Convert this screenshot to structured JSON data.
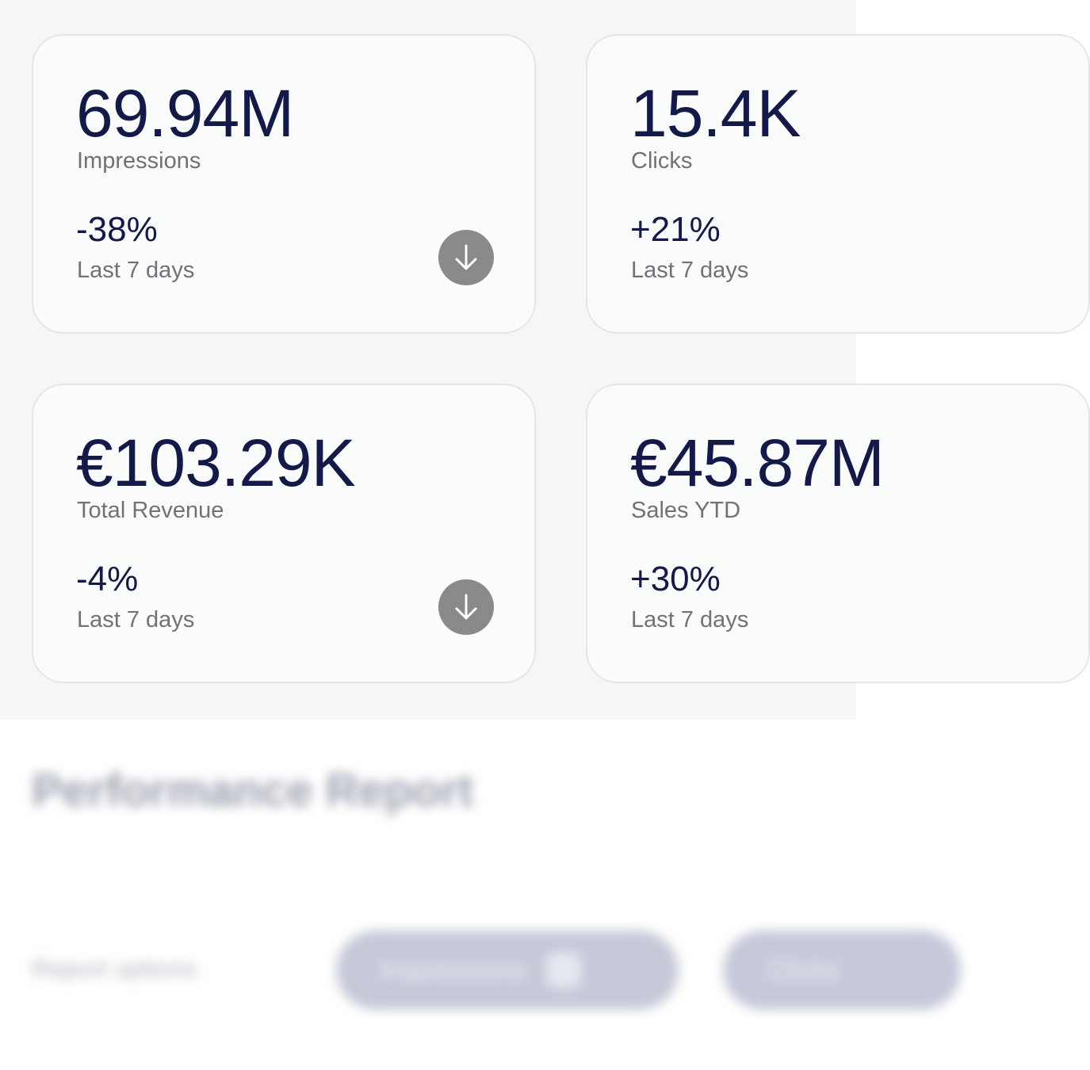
{
  "kpis": [
    {
      "value": "69.94M",
      "label": "Impressions",
      "delta": "-38%",
      "period": "Last 7 days"
    },
    {
      "value": "15.4K",
      "label": "Clicks",
      "delta": "+21%",
      "period": "Last 7 days"
    },
    {
      "value": "€103.29K",
      "label": "Total Revenue",
      "delta": "-4%",
      "period": "Last 7 days"
    },
    {
      "value": "€45.87M",
      "label": "Sales YTD",
      "delta": "+30%",
      "period": "Last 7 days"
    }
  ],
  "report": {
    "title": "Performance Report",
    "options_label": "Report options",
    "options": [
      "Impressions",
      "Clicks"
    ]
  },
  "colors": {
    "value_text": "#131a4a",
    "muted_text": "#6f7277",
    "trend_button": "#8a8a8a",
    "card_border": "#e3e6ec"
  },
  "icons": {
    "trend": "arrow-down-icon",
    "option": "options-icon"
  }
}
